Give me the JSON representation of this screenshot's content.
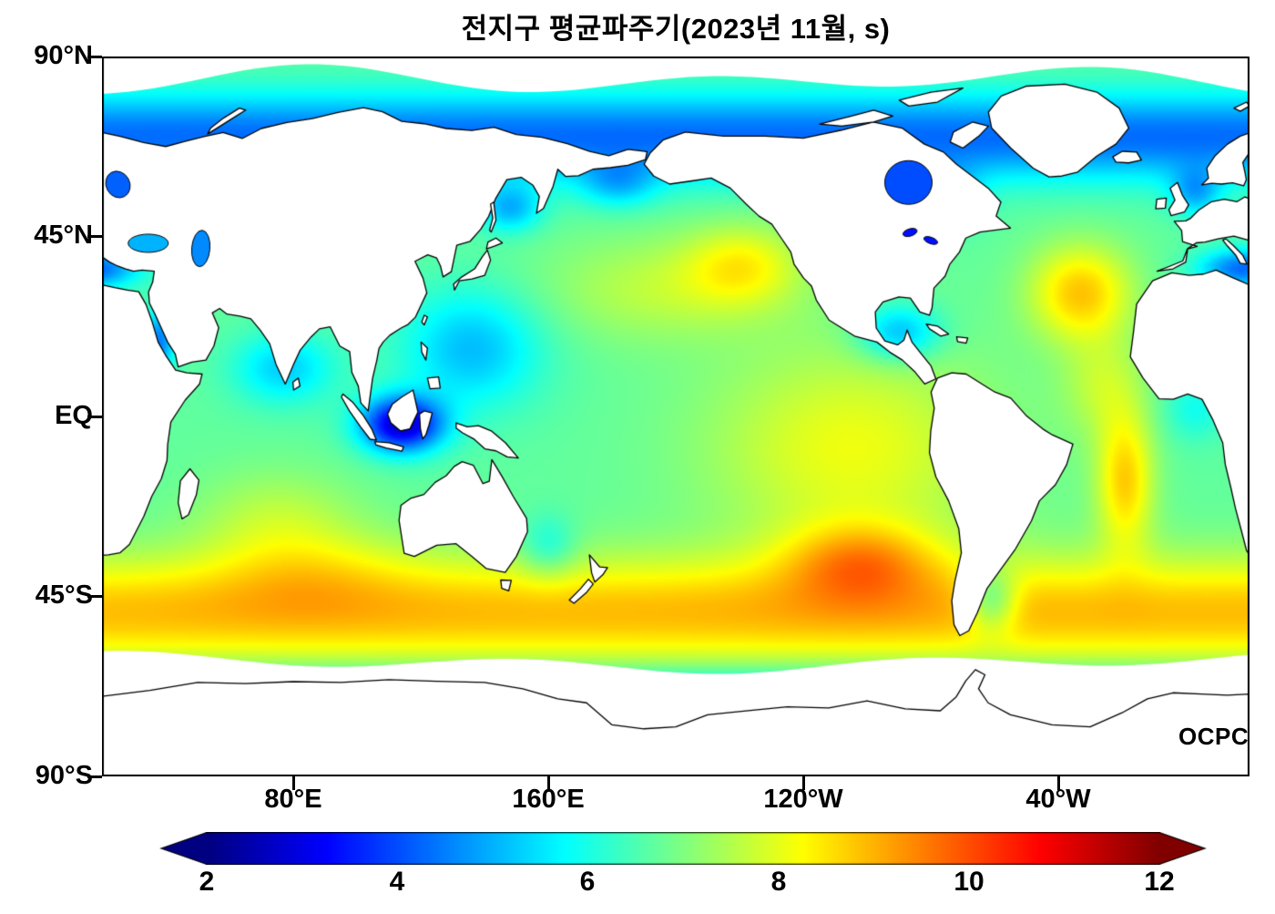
{
  "chart_data": {
    "type": "heatmap",
    "title": "전지구 평균파주기(2023년 11월, s)",
    "watermark": "OCPC",
    "projection": "equirectangular world map, longitude 20E to 380E, latitude -90 to 90",
    "x_axis": {
      "ticks": [
        {
          "lon": 80,
          "label": "80°E"
        },
        {
          "lon": 160,
          "label": "160°E"
        },
        {
          "lon": 240,
          "label": "120°W"
        },
        {
          "lon": 320,
          "label": "40°W"
        }
      ]
    },
    "y_axis": {
      "ticks": [
        {
          "lat": 90,
          "label": "90°N"
        },
        {
          "lat": 45,
          "label": "45°N"
        },
        {
          "lat": 0,
          "label": "EQ"
        },
        {
          "lat": -45,
          "label": "45°S"
        },
        {
          "lat": -90,
          "label": "90°S"
        }
      ]
    },
    "colorbar": {
      "min": 2,
      "max": 12,
      "units": "s",
      "colormap": "jet",
      "extend": "both",
      "tick_values": [
        2,
        4,
        6,
        8,
        10,
        12
      ],
      "tick_labels": [
        "2",
        "4",
        "6",
        "8",
        "10",
        "12"
      ]
    },
    "land_color": "#ffffff",
    "coast_color": "#000000",
    "field": {
      "name": "mean wave period",
      "units": "s",
      "base": 6.7,
      "features": [
        {
          "name": "southern-ocean-band",
          "lon": 200,
          "slon": 2000,
          "lat": -49,
          "slat": 14,
          "dv": 2.2
        },
        {
          "name": "antarctic-coast-taper",
          "lon": 200,
          "slon": 2000,
          "lat": -70,
          "slat": 7,
          "dv": -1.8
        },
        {
          "name": "arctic-taper",
          "lon": 200,
          "slon": 2000,
          "lat": 70,
          "slat": 11,
          "dv": -2.4
        },
        {
          "name": "tropical-east-pacific",
          "lon": 255,
          "slon": 45,
          "lat": -8,
          "slat": 26,
          "dv": 1.4
        },
        {
          "name": "se-pacific-high",
          "lon": 258,
          "slon": 24,
          "lat": -36,
          "slat": 10,
          "dv": 1.7
        },
        {
          "name": "s-atlantic-swell",
          "lon": 341,
          "slon": 9,
          "lat": -16,
          "slat": 17,
          "dv": 2.0
        },
        {
          "name": "n-atlantic-high",
          "lon": 327,
          "slon": 16,
          "lat": 31,
          "slat": 12,
          "dv": 2.1
        },
        {
          "name": "ne-pacific-high",
          "lon": 221,
          "slon": 18,
          "lat": 38,
          "slat": 10,
          "dv": 1.3
        },
        {
          "name": "n-pacific-mid",
          "lon": 196,
          "slon": 38,
          "lat": 32,
          "slat": 13,
          "dv": 0.9
        },
        {
          "name": "w-pacific-low",
          "lon": 136,
          "slon": 22,
          "lat": 17,
          "slat": 15,
          "dv": -1.6
        },
        {
          "name": "indonesia-low",
          "lon": 114,
          "slon": 13,
          "lat": -2,
          "slat": 7,
          "dv": -4.0
        },
        {
          "name": "n-indian-low",
          "lon": 77,
          "slon": 16,
          "lat": 12,
          "slat": 9,
          "dv": -1.4
        },
        {
          "name": "mediterranean-low",
          "lon": 18,
          "slon": 14,
          "lat": 37,
          "slat": 5,
          "dv": -2.4
        },
        {
          "name": "red-sea-low",
          "lon": 38,
          "slon": 5,
          "lat": 19,
          "slat": 8,
          "dv": -2.2
        },
        {
          "name": "caribbean-low",
          "lon": 270,
          "slon": 13,
          "lat": 21,
          "slat": 7,
          "dv": -1.8
        },
        {
          "name": "okhotsk-low",
          "lon": 148,
          "slon": 10,
          "lat": 52,
          "slat": 6,
          "dv": -1.6
        },
        {
          "name": "bering-low",
          "lon": 182,
          "slon": 12,
          "lat": 58,
          "slat": 6,
          "dv": -1.2
        },
        {
          "name": "tasman-low",
          "lon": 160,
          "slon": 9,
          "lat": -33,
          "slat": 8,
          "dv": -1.0
        },
        {
          "name": "s-indian-boost",
          "lon": 85,
          "slon": 32,
          "lat": -38,
          "slat": 11,
          "dv": 0.7
        },
        {
          "name": "trop-atlantic",
          "lon": 334,
          "slon": 13,
          "lat": 8,
          "slat": 13,
          "dv": 0.9
        },
        {
          "name": "argentine-shelf-low",
          "lon": 299,
          "slon": 8,
          "lat": -46,
          "slat": 8,
          "dv": -1.8
        },
        {
          "name": "north-sea-low",
          "lon": 3,
          "slon": 8,
          "lat": 56,
          "slat": 6,
          "dv": -1.5
        },
        {
          "name": "central-indian",
          "lon": 75,
          "slon": 25,
          "lat": -25,
          "slat": 12,
          "dv": 0.8
        },
        {
          "name": "labrador-low",
          "lon": 285,
          "slon": 10,
          "lat": 55,
          "slat": 7,
          "dv": -1.5
        },
        {
          "name": "gulf-guinea-low",
          "lon": 3,
          "slon": 10,
          "lat": 2,
          "slat": 8,
          "dv": -0.8
        }
      ]
    }
  }
}
